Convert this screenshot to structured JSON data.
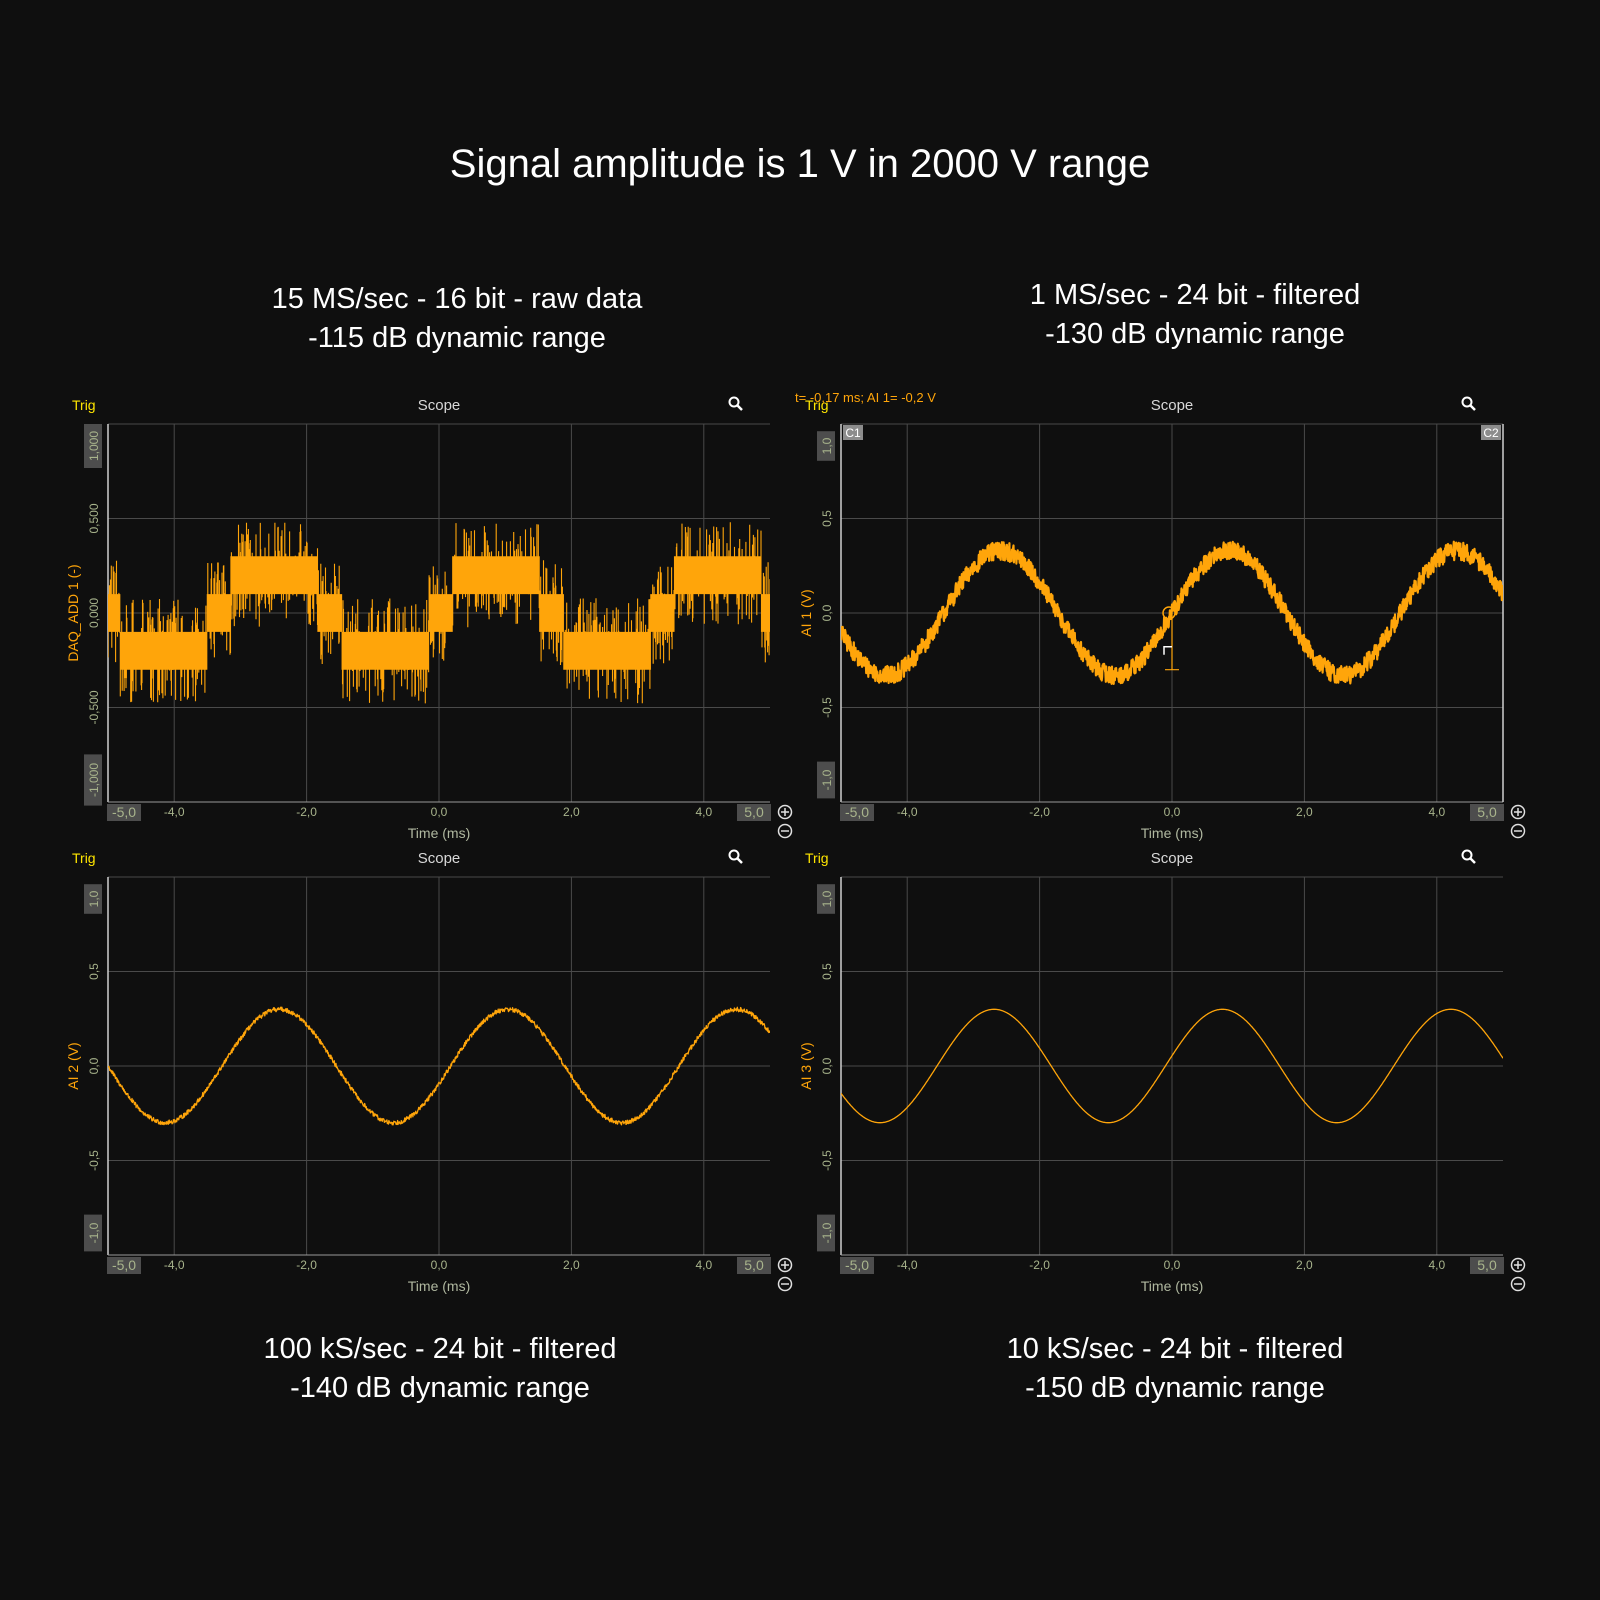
{
  "title": "Signal amplitude is 1 V in 2000 V range",
  "colors": {
    "background": "#0f0f0f",
    "trace": "#ffa50a",
    "grid": "#4a4a4a",
    "axis_text": "#a8b48c",
    "trig": "#ffe600",
    "title_text": "#d8d8d8"
  },
  "chart_data": [
    {
      "type": "line",
      "caption": [
        "15 MS/sec - 16 bit - raw data",
        "-115 dB dynamic range"
      ],
      "panel_title": "Scope",
      "trig_label": "Trig",
      "cursor_readout": "",
      "channel_tags": [],
      "xlabel": "Time (ms)",
      "ylabel": "DAQ_ADD 1 (-)",
      "xlim": [
        -5.0,
        5.0
      ],
      "ylim": [
        -1.0,
        1.0
      ],
      "x_ticks": [
        "-5,0",
        "-4,0",
        "-2,0",
        "0,0",
        "2,0",
        "4,0",
        "5,0"
      ],
      "y_ticks": [
        "-1,000",
        "-0,500",
        "0,000",
        "0,500",
        "1,000"
      ],
      "signal": {
        "amplitude": 0.3,
        "period_ms": 3.35,
        "zero_crossing_ms": -5.0,
        "rendering": "quantized_noisy",
        "step_volts": 0.2,
        "noise_band": 0.1
      },
      "grid": true,
      "icons": [
        "search-icon",
        "zoom-in-icon",
        "zoom-out-icon"
      ]
    },
    {
      "type": "line",
      "caption": [
        "1 MS/sec - 24 bit - filtered",
        "-130 dB dynamic range"
      ],
      "panel_title": "Scope",
      "trig_label": "Trig",
      "cursor_readout": "t= -0,17 ms; AI 1= -0,2 V",
      "channel_tags": [
        "C1",
        "C2"
      ],
      "xlabel": "Time (ms)",
      "ylabel": "AI 1 (V)",
      "xlim": [
        -5.0,
        5.0
      ],
      "ylim": [
        -1.0,
        1.0
      ],
      "x_ticks": [
        "-5,0",
        "-4,0",
        "-2,0",
        "0,0",
        "2,0",
        "4,0",
        "5,0"
      ],
      "y_ticks": [
        "-1,0",
        "-0,5",
        "0,0",
        "0,5",
        "1,0"
      ],
      "signal": {
        "amplitude": 0.33,
        "period_ms": 3.45,
        "zero_crossing_ms": 0.0,
        "rendering": "noisy",
        "noise_band": 0.05
      },
      "grid": true,
      "icons": [
        "search-icon",
        "zoom-in-icon",
        "zoom-out-icon"
      ]
    },
    {
      "type": "line",
      "caption": [
        "100 kS/sec - 24 bit - filtered",
        "-140 dB dynamic range"
      ],
      "panel_title": "Scope",
      "trig_label": "Trig",
      "cursor_readout": "",
      "channel_tags": [],
      "xlabel": "Time (ms)",
      "ylabel": "AI 2 (V)",
      "xlim": [
        -5.0,
        5.0
      ],
      "ylim": [
        -1.0,
        1.0
      ],
      "x_ticks": [
        "-5,0",
        "-4,0",
        "-2,0",
        "0,0",
        "2,0",
        "4,0",
        "5,0"
      ],
      "y_ticks": [
        "-1,0",
        "-0,5",
        "0,0",
        "0,5",
        "1,0"
      ],
      "signal": {
        "amplitude": 0.3,
        "period_ms": 3.45,
        "zero_crossing_ms": -5.0,
        "rendering": "slight_noise",
        "noise_band": 0.012
      },
      "grid": true,
      "icons": [
        "search-icon",
        "zoom-in-icon",
        "zoom-out-icon"
      ]
    },
    {
      "type": "line",
      "caption": [
        "10 kS/sec - 24 bit - filtered",
        "-150 dB dynamic range"
      ],
      "panel_title": "Scope",
      "trig_label": "Trig",
      "cursor_readout": "",
      "channel_tags": [],
      "xlabel": "Time (ms)",
      "ylabel": "AI 3 (V)",
      "xlim": [
        -5.0,
        5.0
      ],
      "ylim": [
        -1.0,
        1.0
      ],
      "x_ticks": [
        "-5,0",
        "-4,0",
        "-2,0",
        "0,0",
        "2,0",
        "4,0",
        "5,0"
      ],
      "y_ticks": [
        "-1,0",
        "-0,5",
        "0,0",
        "0,5",
        "1,0"
      ],
      "signal": {
        "amplitude": 0.3,
        "period_ms": 3.45,
        "zero_crossing_ms": -0.1,
        "rendering": "clean",
        "noise_band": 0.0
      },
      "grid": true,
      "icons": [
        "search-icon",
        "zoom-in-icon",
        "zoom-out-icon"
      ]
    }
  ]
}
